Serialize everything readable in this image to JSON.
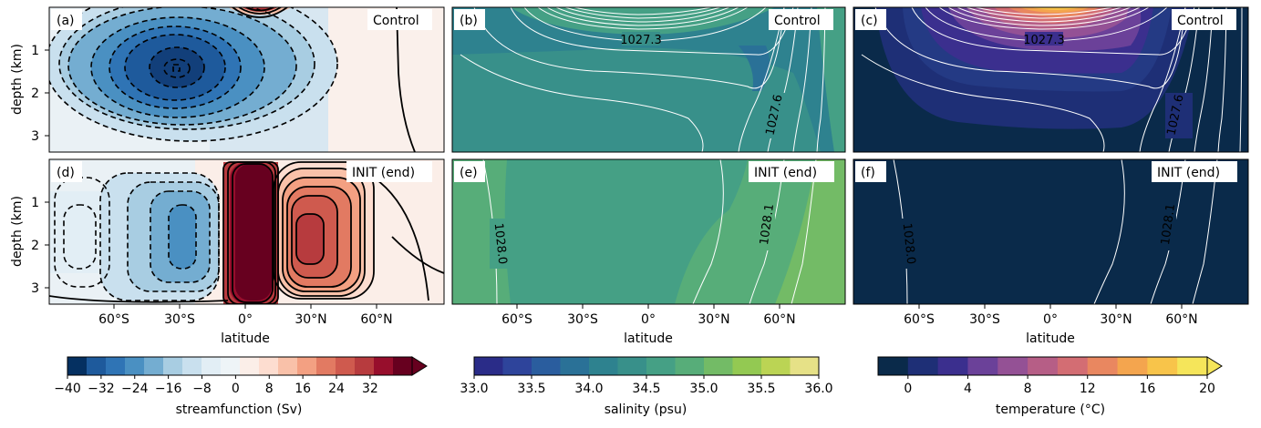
{
  "panels": [
    {
      "id": "a",
      "tag": "(a)",
      "label": "Control",
      "var": "streamfunction"
    },
    {
      "id": "b",
      "tag": "(b)",
      "label": "Control",
      "var": "salinity",
      "contour_label": "1027.3",
      "contour_label2": "1027.6"
    },
    {
      "id": "c",
      "tag": "(c)",
      "label": "Control",
      "var": "temperature",
      "contour_label": "1027.3",
      "contour_label2": "1027.6"
    },
    {
      "id": "d",
      "tag": "(d)",
      "label": "INIT (end)",
      "var": "streamfunction"
    },
    {
      "id": "e",
      "tag": "(e)",
      "label": "INIT (end)",
      "var": "salinity",
      "contour_label": "1028.0",
      "contour_label2": "1028.1"
    },
    {
      "id": "f",
      "tag": "(f)",
      "label": "INIT (end)",
      "var": "temperature",
      "contour_label": "1028.0",
      "contour_label2": "1028.1"
    }
  ],
  "axes": {
    "ylabel": "depth (km)",
    "xlabel": "latitude",
    "yticks": [
      "1",
      "2",
      "3"
    ],
    "xticks": [
      "60°S",
      "30°S",
      "0°",
      "30°N",
      "60°N"
    ]
  },
  "colorbars": [
    {
      "label": "streamfunction (Sv)",
      "ticks": [
        "−40",
        "−32",
        "−24",
        "−16",
        "−8",
        "0",
        "8",
        "16",
        "24",
        "32"
      ],
      "extend": "max"
    },
    {
      "label": "salinity (psu)",
      "ticks": [
        "33.0",
        "33.5",
        "34.0",
        "34.5",
        "35.0",
        "35.5",
        "36.0"
      ],
      "extend": "none"
    },
    {
      "label": "temperature (°C)",
      "ticks": [
        "0",
        "4",
        "8",
        "12",
        "16",
        "20"
      ],
      "extend": "max"
    }
  ],
  "chart_data": [
    {
      "type": "heatmap",
      "panel": "a",
      "title": "Control",
      "variable": "streamfunction (Sv)",
      "x": "latitude",
      "y": "depth (km)",
      "ylim": [
        3.4,
        0
      ],
      "xticks": [
        "60°S",
        "30°S",
        "0°",
        "30°N",
        "60°N"
      ],
      "features": [
        "negative cell centered ~30°S at 1.5 km depth, min ~ -40 Sv",
        "weak positive near surface at equator"
      ]
    },
    {
      "type": "heatmap",
      "panel": "b",
      "title": "Control",
      "variable": "salinity (psu)",
      "clim": [
        33.0,
        36.0
      ],
      "x": "latitude",
      "y": "depth (km)",
      "ylim": [
        3.4,
        0
      ],
      "xticks": [
        "60°S",
        "30°S",
        "0°",
        "30°N",
        "60°N"
      ],
      "contour_labels": [
        "1027.3",
        "1027.6"
      ]
    },
    {
      "type": "heatmap",
      "panel": "c",
      "title": "Control",
      "variable": "temperature (°C)",
      "clim": [
        0,
        20
      ],
      "x": "latitude",
      "y": "depth (km)",
      "ylim": [
        3.4,
        0
      ],
      "xticks": [
        "60°S",
        "30°S",
        "0°",
        "30°N",
        "60°N"
      ],
      "contour_labels": [
        "1027.3",
        "1027.6"
      ]
    },
    {
      "type": "heatmap",
      "panel": "d",
      "title": "INIT (end)",
      "variable": "streamfunction (Sv)",
      "x": "latitude",
      "y": "depth (km)",
      "ylim": [
        3.4,
        0
      ],
      "xticks": [
        "60°S",
        "30°S",
        "0°",
        "30°N",
        "60°N"
      ],
      "features": [
        "strong positive cell just north of equator > 40 Sv",
        "positive cells 20°N–45°N",
        "negative cells 45°S–10°S"
      ]
    },
    {
      "type": "heatmap",
      "panel": "e",
      "title": "INIT (end)",
      "variable": "salinity (psu)",
      "clim": [
        33.0,
        36.0
      ],
      "x": "latitude",
      "y": "depth (km)",
      "ylim": [
        3.4,
        0
      ],
      "xticks": [
        "60°S",
        "30°S",
        "0°",
        "30°N",
        "60°N"
      ],
      "contour_labels": [
        "1028.0",
        "1028.1"
      ]
    },
    {
      "type": "heatmap",
      "panel": "f",
      "title": "INIT (end)",
      "variable": "temperature (°C)",
      "clim": [
        0,
        20
      ],
      "x": "latitude",
      "y": "depth (km)",
      "ylim": [
        3.4,
        0
      ],
      "xticks": [
        "60°S",
        "30°S",
        "0°",
        "30°N",
        "60°N"
      ],
      "contour_labels": [
        "1028.0",
        "1028.1"
      ]
    }
  ],
  "colors": {
    "stream_neg": [
      "#053061",
      "#1e5a9c",
      "#2f74b5",
      "#4a90c2",
      "#74add1",
      "#a8cde2",
      "#c9e0ee",
      "#e2eef5",
      "#eef4f7"
    ],
    "stream_pos": [
      "#fbeee8",
      "#fdddd0",
      "#f9c1a9",
      "#f3a082",
      "#e27a62",
      "#cf5a4e",
      "#b73b3e",
      "#970e2c",
      "#67001f"
    ],
    "salinity": [
      "#2a2c88",
      "#2e449b",
      "#2a5d9e",
      "#2a7197",
      "#2e828f",
      "#38908a",
      "#45a085",
      "#57ad79",
      "#73bb66",
      "#93c952",
      "#bbd454",
      "#e6e187"
    ],
    "temperature": [
      "#0a2a4a",
      "#1e2f76",
      "#3b2f8e",
      "#6b4199",
      "#945195",
      "#b65e86",
      "#d36d73",
      "#e98760",
      "#f4a54e",
      "#f8c44a",
      "#f5e55a"
    ]
  }
}
